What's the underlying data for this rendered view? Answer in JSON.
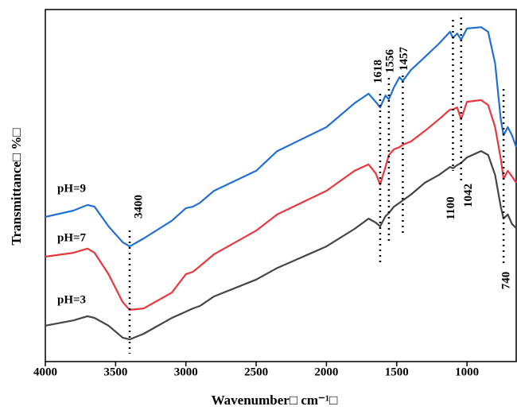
{
  "chart_data": {
    "type": "line",
    "x_label": "Wavenumber□ cm⁻¹□",
    "y_label": "Transmittance□ %□",
    "x": [
      4000,
      3800,
      3700,
      3650,
      3550,
      3450,
      3400,
      3300,
      3100,
      3000,
      2950,
      2900,
      2800,
      2500,
      2350,
      2000,
      1800,
      1700,
      1650,
      1618,
      1580,
      1556,
      1520,
      1480,
      1457,
      1400,
      1300,
      1200,
      1120,
      1100,
      1070,
      1042,
      1000,
      900,
      850,
      800,
      760,
      740,
      710,
      680,
      650
    ],
    "series": [
      {
        "name": "pH=9",
        "color": "#1f6fd6",
        "values": [
          41.1,
          42.9,
          44.5,
          44.0,
          38.4,
          33.9,
          32.7,
          35.0,
          40.0,
          43.6,
          44.0,
          45.1,
          48.5,
          54.2,
          59.8,
          66.6,
          73.4,
          76.1,
          73.8,
          72.2,
          75.6,
          74.5,
          77.9,
          80.8,
          79.7,
          82.8,
          86.5,
          90.3,
          93.7,
          91.9,
          93.2,
          91.4,
          94.6,
          95.0,
          93.7,
          84.7,
          68.8,
          64.3,
          66.6,
          64.3,
          60.9
        ]
      },
      {
        "name": "pH=7",
        "color": "#e8383d",
        "values": [
          29.8,
          30.9,
          32.1,
          30.9,
          24.8,
          16.9,
          14.7,
          15.1,
          19.6,
          24.8,
          25.5,
          27.1,
          30.5,
          37.2,
          41.8,
          48.5,
          54.2,
          56.0,
          53.5,
          50.3,
          55.3,
          58.7,
          60.3,
          60.9,
          61.6,
          62.5,
          65.5,
          68.8,
          71.6,
          71.6,
          72.2,
          68.8,
          73.8,
          74.3,
          72.9,
          66.6,
          57.6,
          51.9,
          54.2,
          52.6,
          50.8
        ]
      },
      {
        "name": "pH=3",
        "color": "#454545",
        "values": [
          10.2,
          11.7,
          12.9,
          12.4,
          10.2,
          6.8,
          6.3,
          7.9,
          12.4,
          14.2,
          15.1,
          15.8,
          18.5,
          23.3,
          26.6,
          32.7,
          37.7,
          40.6,
          39.5,
          38.4,
          41.3,
          42.2,
          44.0,
          45.1,
          45.8,
          47.4,
          50.8,
          53.0,
          55.3,
          54.9,
          55.8,
          56.4,
          58.0,
          59.8,
          58.7,
          53.0,
          44.0,
          40.6,
          41.8,
          39.1,
          37.9
        ]
      }
    ],
    "peaks": [
      3400,
      1618,
      1556,
      1457,
      1100,
      1042,
      740
    ],
    "xlim": [
      4000,
      650
    ],
    "xticks": [
      4000,
      3500,
      3000,
      2500,
      2000,
      1500,
      1000
    ],
    "ylim": [
      0,
      100
    ],
    "yticks": []
  }
}
